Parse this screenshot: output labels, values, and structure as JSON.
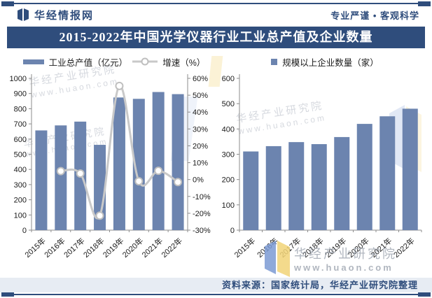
{
  "header": {
    "brand": "华经情报网",
    "slogan": "专业严谨 • 客观科学"
  },
  "banner": {
    "title": "2015-2022年中国光学仪器行业工业总产值及企业数量"
  },
  "footer": {
    "source": "资料来源：国家统计局，华经产业研究院整理"
  },
  "watermark": {
    "name": "华经产业研究院",
    "url": "www.huaon.com"
  },
  "colors": {
    "navy": "#2F4D7C",
    "bar": "#6C84AF",
    "line": "#C9C9C9",
    "marker_stroke": "#BFBFBF",
    "marker_fill": "#FFFFFF",
    "axis": "#8C8C8C",
    "tick_text": "#1A1A1A",
    "footer_bg": "#E7ECF3",
    "wm_blue": "#7C9BD4",
    "wm_yellow": "#F2D478"
  },
  "chart_data": [
    {
      "type": "bar+line",
      "categories": [
        "2015年",
        "2016年",
        "2017年",
        "2018年",
        "2019年",
        "2020年",
        "2021年",
        "2022年"
      ],
      "series": [
        {
          "name": "工业总产值（亿元）",
          "type": "bar",
          "axis": "left",
          "values": [
            657,
            690,
            715,
            562,
            874,
            865,
            910,
            896
          ]
        },
        {
          "name": "增速（%）",
          "type": "line",
          "axis": "right",
          "values": [
            null,
            5.0,
            3.6,
            -21.4,
            55.5,
            -1.0,
            5.2,
            -1.5
          ]
        }
      ],
      "left_axis": {
        "min": 0,
        "max": 1000,
        "step": 100,
        "suffix": ""
      },
      "right_axis": {
        "min": -30,
        "max": 60,
        "step": 10,
        "suffix": "%"
      },
      "grid": false,
      "legend_position": "top"
    },
    {
      "type": "bar",
      "legend": "规模以上企业数量（家）",
      "categories": [
        "2015年",
        "2016年",
        "2017年",
        "2018年",
        "2019年",
        "2020年",
        "2021年",
        "2022年"
      ],
      "values": [
        311,
        332,
        348,
        340,
        368,
        420,
        450,
        480
      ],
      "left_axis": {
        "min": 0,
        "max": 600,
        "step": 100,
        "suffix": ""
      },
      "grid": false,
      "legend_position": "top"
    }
  ]
}
